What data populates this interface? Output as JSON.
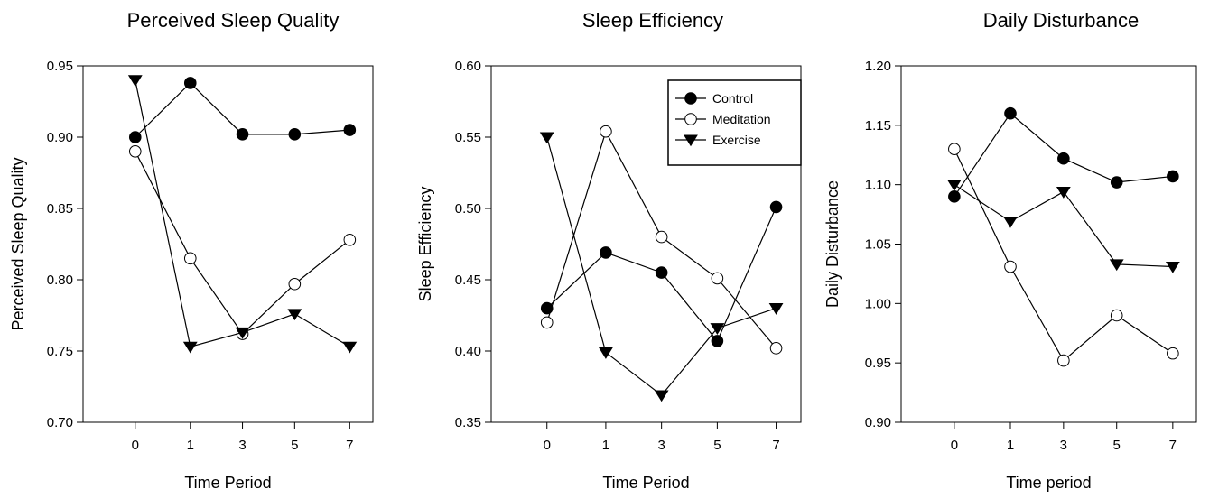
{
  "chart_data": [
    {
      "type": "line",
      "title": "Perceived Sleep Quality",
      "xlabel": "Time Period",
      "ylabel": "Perceived Sleep Quality",
      "categories": [
        "0",
        "1",
        "3",
        "5",
        "7"
      ],
      "ylim": [
        0.7,
        0.95
      ],
      "yticks": [
        "0.70",
        "0.75",
        "0.80",
        "0.85",
        "0.90",
        "0.95"
      ],
      "grid": false,
      "legend": "none",
      "series": [
        {
          "name": "Control",
          "marker": "filled-circle",
          "values": [
            0.9,
            0.938,
            0.902,
            0.902,
            0.905
          ]
        },
        {
          "name": "Meditation",
          "marker": "open-circle",
          "values": [
            0.89,
            0.815,
            0.762,
            0.797,
            0.828
          ]
        },
        {
          "name": "Exercise",
          "marker": "filled-triangle-down",
          "values": [
            0.94,
            0.753,
            0.763,
            0.776,
            0.753
          ]
        }
      ]
    },
    {
      "type": "line",
      "title": "Sleep Efficiency",
      "xlabel": "Time Period",
      "ylabel": "Sleep Efficiency",
      "categories": [
        "0",
        "1",
        "3",
        "5",
        "7"
      ],
      "ylim": [
        0.35,
        0.6
      ],
      "yticks": [
        "0.35",
        "0.40",
        "0.45",
        "0.50",
        "0.55",
        "0.60"
      ],
      "grid": false,
      "legend": "top-right",
      "series": [
        {
          "name": "Control",
          "marker": "filled-circle",
          "values": [
            0.43,
            0.469,
            0.455,
            0.407,
            0.501
          ]
        },
        {
          "name": "Meditation",
          "marker": "open-circle",
          "values": [
            0.42,
            0.554,
            0.48,
            0.451,
            0.402
          ]
        },
        {
          "name": "Exercise",
          "marker": "filled-triangle-down",
          "values": [
            0.55,
            0.399,
            0.369,
            0.416,
            0.43
          ]
        }
      ]
    },
    {
      "type": "line",
      "title": "Daily Disturbance",
      "xlabel": "Time period",
      "ylabel": "Daily Disturbance",
      "categories": [
        "0",
        "1",
        "3",
        "5",
        "7"
      ],
      "ylim": [
        0.9,
        1.2
      ],
      "yticks": [
        "0.90",
        "0.95",
        "1.00",
        "1.05",
        "1.10",
        "1.15",
        "1.20"
      ],
      "grid": false,
      "legend": "none",
      "series": [
        {
          "name": "Control",
          "marker": "filled-circle",
          "values": [
            1.09,
            1.16,
            1.122,
            1.102,
            1.107
          ]
        },
        {
          "name": "Meditation",
          "marker": "open-circle",
          "values": [
            1.13,
            1.031,
            0.952,
            0.99,
            0.958
          ]
        },
        {
          "name": "Exercise",
          "marker": "filled-triangle-down",
          "values": [
            1.1,
            1.069,
            1.094,
            1.033,
            1.031
          ]
        }
      ]
    }
  ]
}
